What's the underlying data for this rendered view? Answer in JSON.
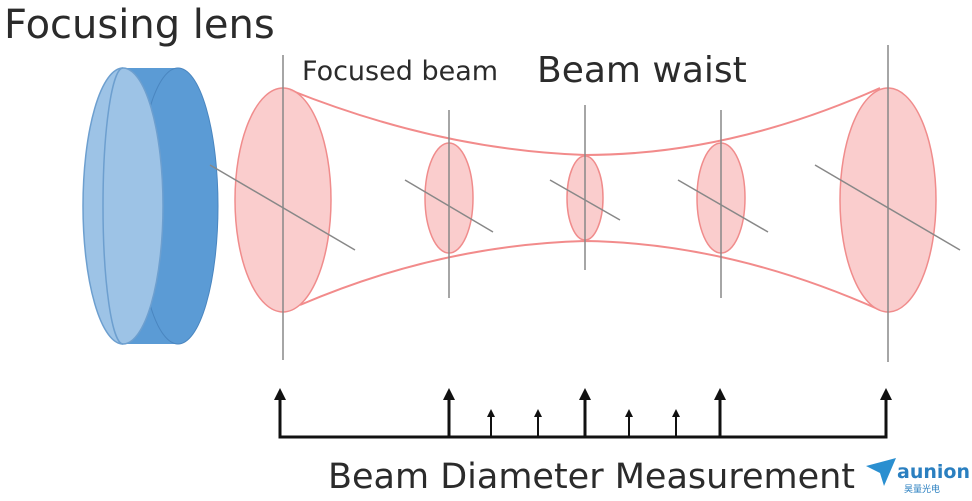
{
  "labels": {
    "lens": "Focusing lens",
    "focused_beam": "Focused beam",
    "waist": "Beam waist",
    "measurement": "Beam Diameter Measurement"
  },
  "logo": {
    "name": "aunion",
    "subtitle": "昊量光电"
  }
}
